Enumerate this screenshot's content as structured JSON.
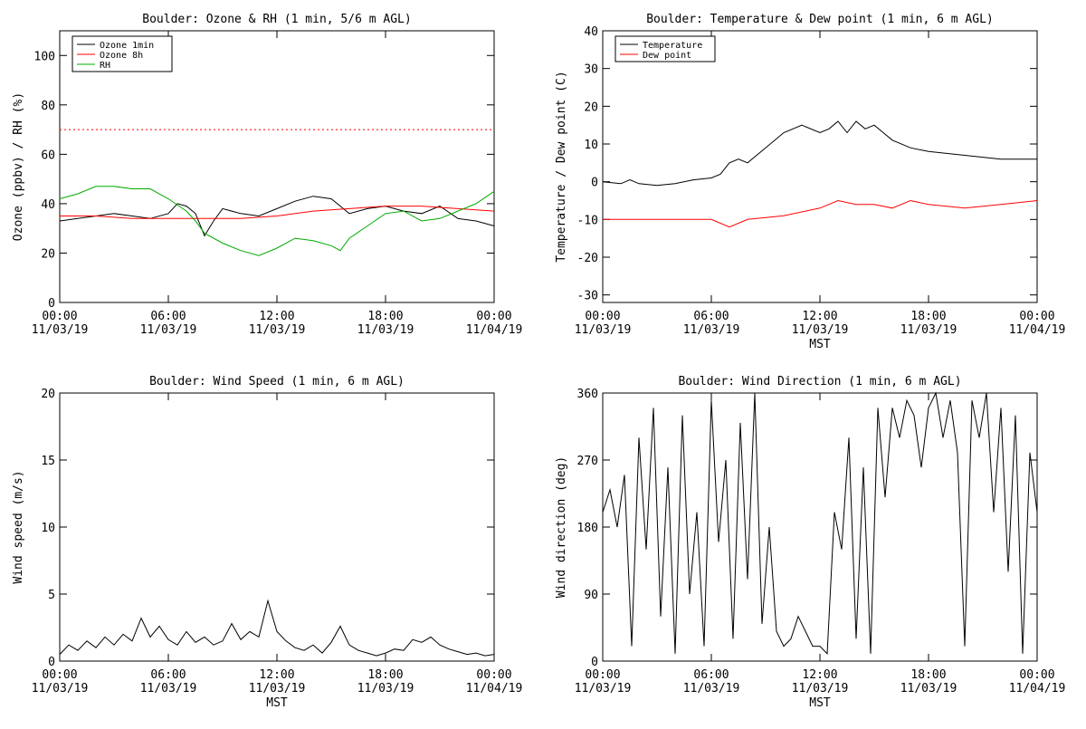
{
  "chart_data": [
    {
      "type": "line",
      "title": "Boulder: Ozone & RH (1 min, 5/6 m AGL)",
      "ylabel": "Ozone (ppbv) / RH (%)",
      "xlabel": "",
      "xlim": [
        0,
        24
      ],
      "ylim": [
        0,
        110
      ],
      "yticks": [
        0,
        20,
        40,
        60,
        80,
        100
      ],
      "xticks": [
        {
          "time": "00:00",
          "date": "11/03/19"
        },
        {
          "time": "06:00",
          "date": "11/03/19"
        },
        {
          "time": "12:00",
          "date": "11/03/19"
        },
        {
          "time": "18:00",
          "date": "11/03/19"
        },
        {
          "time": "00:00",
          "date": "11/04/19"
        }
      ],
      "legend_position": "top-left",
      "series": [
        {
          "name": "Ozone 1min",
          "color": "#000000",
          "x": [
            0,
            1,
            2,
            3,
            4,
            5,
            6,
            6.5,
            7,
            7.5,
            8,
            8.5,
            9,
            10,
            11,
            12,
            13,
            14,
            15,
            16,
            17,
            18,
            19,
            20,
            21,
            22,
            23,
            24
          ],
          "y": [
            33,
            34,
            35,
            36,
            35,
            34,
            36,
            40,
            39,
            36,
            27,
            33,
            38,
            36,
            35,
            38,
            41,
            43,
            42,
            36,
            38,
            39,
            37,
            36,
            39,
            34,
            33,
            31
          ]
        },
        {
          "name": "Ozone 8h",
          "color": "#ff0000",
          "x": [
            0,
            2,
            4,
            6,
            8,
            10,
            12,
            14,
            16,
            18,
            20,
            22,
            24
          ],
          "y": [
            35,
            35,
            34,
            34,
            34,
            34,
            35,
            37,
            38,
            39,
            39,
            38,
            37
          ]
        },
        {
          "name": "RH",
          "color": "#00aa00",
          "x": [
            0,
            1,
            2,
            3,
            4,
            5,
            6,
            7,
            7.5,
            8,
            9,
            10,
            11,
            12,
            13,
            14,
            15,
            15.5,
            16,
            17,
            18,
            19,
            20,
            21,
            22,
            23,
            24
          ],
          "y": [
            42,
            44,
            47,
            47,
            46,
            46,
            42,
            37,
            33,
            28,
            24,
            21,
            19,
            22,
            26,
            25,
            23,
            21,
            26,
            31,
            36,
            37,
            33,
            34,
            37,
            40,
            45
          ]
        },
        {
          "name": "",
          "color": "#ff0000",
          "style": "dotted",
          "x": [
            0,
            24
          ],
          "y": [
            70,
            70
          ]
        }
      ]
    },
    {
      "type": "line",
      "title": "Boulder: Temperature & Dew point (1 min, 6 m AGL)",
      "ylabel": "Temperature / Dew point (C)",
      "xlabel": "MST",
      "xlim": [
        0,
        24
      ],
      "ylim": [
        -32,
        40
      ],
      "yticks": [
        -30,
        -20,
        -10,
        0,
        10,
        20,
        30,
        40
      ],
      "xticks": [
        {
          "time": "00:00",
          "date": "11/03/19"
        },
        {
          "time": "06:00",
          "date": "11/03/19"
        },
        {
          "time": "12:00",
          "date": "11/03/19"
        },
        {
          "time": "18:00",
          "date": "11/03/19"
        },
        {
          "time": "00:00",
          "date": "11/04/19"
        }
      ],
      "legend_position": "top-left",
      "series": [
        {
          "name": "Temperature",
          "color": "#000000",
          "x": [
            0,
            1,
            1.5,
            2,
            3,
            4,
            5,
            6,
            6.5,
            7,
            7.5,
            8,
            9,
            10,
            11,
            12,
            12.5,
            13,
            13.5,
            14,
            14.5,
            15,
            15.5,
            16,
            17,
            18,
            20,
            22,
            24
          ],
          "y": [
            0,
            -0.5,
            0.5,
            -0.5,
            -1,
            -0.5,
            0.5,
            1,
            2,
            5,
            6,
            5,
            9,
            13,
            15,
            13,
            14,
            16,
            13,
            16,
            14,
            15,
            13,
            11,
            9,
            8,
            7,
            6,
            6
          ]
        },
        {
          "name": "Dew point",
          "color": "#ff0000",
          "x": [
            0,
            2,
            4,
            6,
            7,
            8,
            10,
            12,
            13,
            14,
            15,
            16,
            17,
            18,
            20,
            22,
            24
          ],
          "y": [
            -10,
            -10,
            -10,
            -10,
            -12,
            -10,
            -9,
            -7,
            -5,
            -6,
            -6,
            -7,
            -5,
            -6,
            -7,
            -6,
            -5
          ]
        }
      ]
    },
    {
      "type": "line",
      "title": "Boulder: Wind Speed (1 min, 6 m AGL)",
      "ylabel": "Wind speed (m/s)",
      "xlabel": "MST",
      "xlim": [
        0,
        24
      ],
      "ylim": [
        0,
        20
      ],
      "yticks": [
        0,
        5,
        10,
        15,
        20
      ],
      "xticks": [
        {
          "time": "00:00",
          "date": "11/03/19"
        },
        {
          "time": "06:00",
          "date": "11/03/19"
        },
        {
          "time": "12:00",
          "date": "11/03/19"
        },
        {
          "time": "18:00",
          "date": "11/03/19"
        },
        {
          "time": "00:00",
          "date": "11/04/19"
        }
      ],
      "series": [
        {
          "name": "",
          "color": "#000000",
          "x": [
            0,
            0.5,
            1,
            1.5,
            2,
            2.5,
            3,
            3.5,
            4,
            4.5,
            5,
            5.5,
            6,
            6.5,
            7,
            7.5,
            8,
            8.5,
            9,
            9.5,
            10,
            10.5,
            11,
            11.5,
            12,
            12.5,
            13,
            13.5,
            14,
            14.5,
            15,
            15.5,
            16,
            16.5,
            17,
            17.5,
            18,
            18.5,
            19,
            19.5,
            20,
            20.5,
            21,
            21.5,
            22,
            22.5,
            23,
            23.5,
            24
          ],
          "y": [
            0.5,
            1.2,
            0.8,
            1.5,
            1.0,
            1.8,
            1.2,
            2.0,
            1.5,
            3.2,
            1.8,
            2.6,
            1.6,
            1.2,
            2.2,
            1.4,
            1.8,
            1.2,
            1.5,
            2.8,
            1.6,
            2.2,
            1.8,
            4.5,
            2.2,
            1.5,
            1.0,
            0.8,
            1.2,
            0.6,
            1.4,
            2.6,
            1.2,
            0.8,
            0.6,
            0.4,
            0.6,
            0.9,
            0.8,
            1.6,
            1.4,
            1.8,
            1.2,
            0.9,
            0.7,
            0.5,
            0.6,
            0.4,
            0.5
          ]
        }
      ]
    },
    {
      "type": "line",
      "title": "Boulder: Wind Direction (1 min, 6 m AGL)",
      "ylabel": "Wind direction (deg)",
      "xlabel": "MST",
      "xlim": [
        0,
        24
      ],
      "ylim": [
        0,
        360
      ],
      "yticks": [
        0,
        90,
        180,
        270,
        360
      ],
      "xticks": [
        {
          "time": "00:00",
          "date": "11/03/19"
        },
        {
          "time": "06:00",
          "date": "11/03/19"
        },
        {
          "time": "12:00",
          "date": "11/03/19"
        },
        {
          "time": "18:00",
          "date": "11/03/19"
        },
        {
          "time": "00:00",
          "date": "11/04/19"
        }
      ],
      "series": [
        {
          "name": "",
          "color": "#000000",
          "x": [
            0,
            0.4,
            0.8,
            1.2,
            1.6,
            2,
            2.4,
            2.8,
            3.2,
            3.6,
            4,
            4.4,
            4.8,
            5.2,
            5.6,
            6,
            6.4,
            6.8,
            7.2,
            7.6,
            8,
            8.4,
            8.8,
            9.2,
            9.6,
            10,
            10.4,
            10.8,
            11.2,
            11.6,
            12,
            12.4,
            12.8,
            13.2,
            13.6,
            14,
            14.4,
            14.8,
            15.2,
            15.6,
            16,
            16.4,
            16.8,
            17.2,
            17.6,
            18,
            18.4,
            18.8,
            19.2,
            19.6,
            20,
            20.4,
            20.8,
            21.2,
            21.6,
            22,
            22.4,
            22.8,
            23.2,
            23.6,
            24
          ],
          "y": [
            200,
            230,
            180,
            250,
            20,
            300,
            150,
            340,
            60,
            260,
            10,
            330,
            90,
            200,
            20,
            350,
            160,
            270,
            30,
            320,
            110,
            360,
            50,
            180,
            40,
            20,
            30,
            60,
            40,
            20,
            20,
            10,
            200,
            150,
            300,
            30,
            260,
            10,
            340,
            220,
            340,
            300,
            350,
            330,
            260,
            340,
            360,
            300,
            350,
            280,
            20,
            350,
            300,
            360,
            200,
            340,
            120,
            330,
            10,
            280,
            200
          ]
        }
      ]
    }
  ]
}
